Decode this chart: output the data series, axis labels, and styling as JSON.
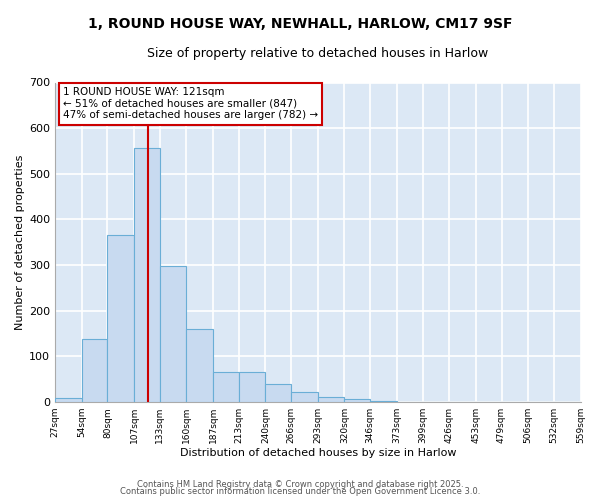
{
  "title1": "1, ROUND HOUSE WAY, NEWHALL, HARLOW, CM17 9SF",
  "title2": "Size of property relative to detached houses in Harlow",
  "xlabel": "Distribution of detached houses by size in Harlow",
  "ylabel": "Number of detached properties",
  "bar_values": [
    8,
    138,
    365,
    557,
    298,
    161,
    65,
    65,
    40,
    22,
    12,
    7,
    3,
    1,
    0,
    0,
    0,
    0,
    0,
    0
  ],
  "bin_edges": [
    27,
    54,
    80,
    107,
    133,
    160,
    187,
    213,
    240,
    266,
    293,
    320,
    346,
    373,
    399,
    426,
    453,
    479,
    506,
    532,
    559
  ],
  "tick_labels": [
    "27sqm",
    "54sqm",
    "80sqm",
    "107sqm",
    "133sqm",
    "160sqm",
    "187sqm",
    "213sqm",
    "240sqm",
    "266sqm",
    "293sqm",
    "320sqm",
    "346sqm",
    "373sqm",
    "399sqm",
    "426sqm",
    "453sqm",
    "479sqm",
    "506sqm",
    "532sqm",
    "559sqm"
  ],
  "bar_color": "#c8daf0",
  "bar_edge_color": "#6aaed6",
  "red_line_x": 121,
  "annotation_title": "1 ROUND HOUSE WAY: 121sqm",
  "annotation_line1": "← 51% of detached houses are smaller (847)",
  "annotation_line2": "47% of semi-detached houses are larger (782) →",
  "annotation_box_color": "#ffffff",
  "annotation_box_edge": "#cc0000",
  "red_line_color": "#cc0000",
  "fig_background": "#ffffff",
  "plot_background": "#dce8f5",
  "grid_color": "#ffffff",
  "ylim": [
    0,
    700
  ],
  "yticks": [
    0,
    100,
    200,
    300,
    400,
    500,
    600,
    700
  ],
  "footer1": "Contains HM Land Registry data © Crown copyright and database right 2025.",
  "footer2": "Contains public sector information licensed under the Open Government Licence 3.0."
}
